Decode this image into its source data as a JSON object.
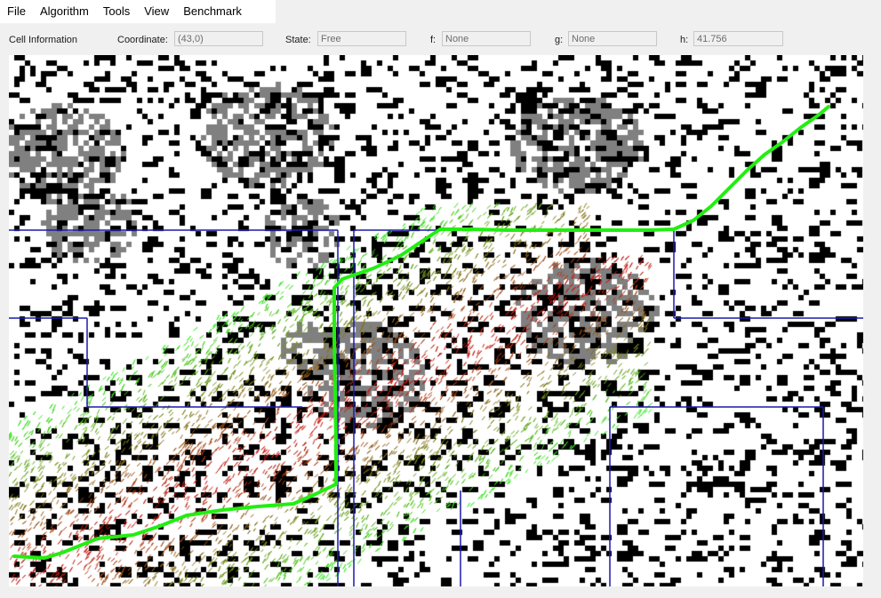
{
  "menu": {
    "file": "File",
    "algorithm": "Algorithm",
    "tools": "Tools",
    "view": "View",
    "benchmark": "Benchmark"
  },
  "cell_info": {
    "section_label": "Cell Information",
    "coordinate_label": "Coordinate:",
    "coordinate_value": "(43,0)",
    "state_label": "State:",
    "state_value": "Free",
    "f_label": "f:",
    "f_value": "None",
    "g_label": "g:",
    "g_value": "None",
    "h_label": "h:",
    "h_value": "41.756"
  },
  "colors": {
    "obstacle": "#000000",
    "rough_terrain": "#808080",
    "free": "#ffffff",
    "path": "#22ee11",
    "region_border": "#1a1aaa",
    "explored_high": "#cc1111",
    "explored_low": "#33ee22"
  }
}
